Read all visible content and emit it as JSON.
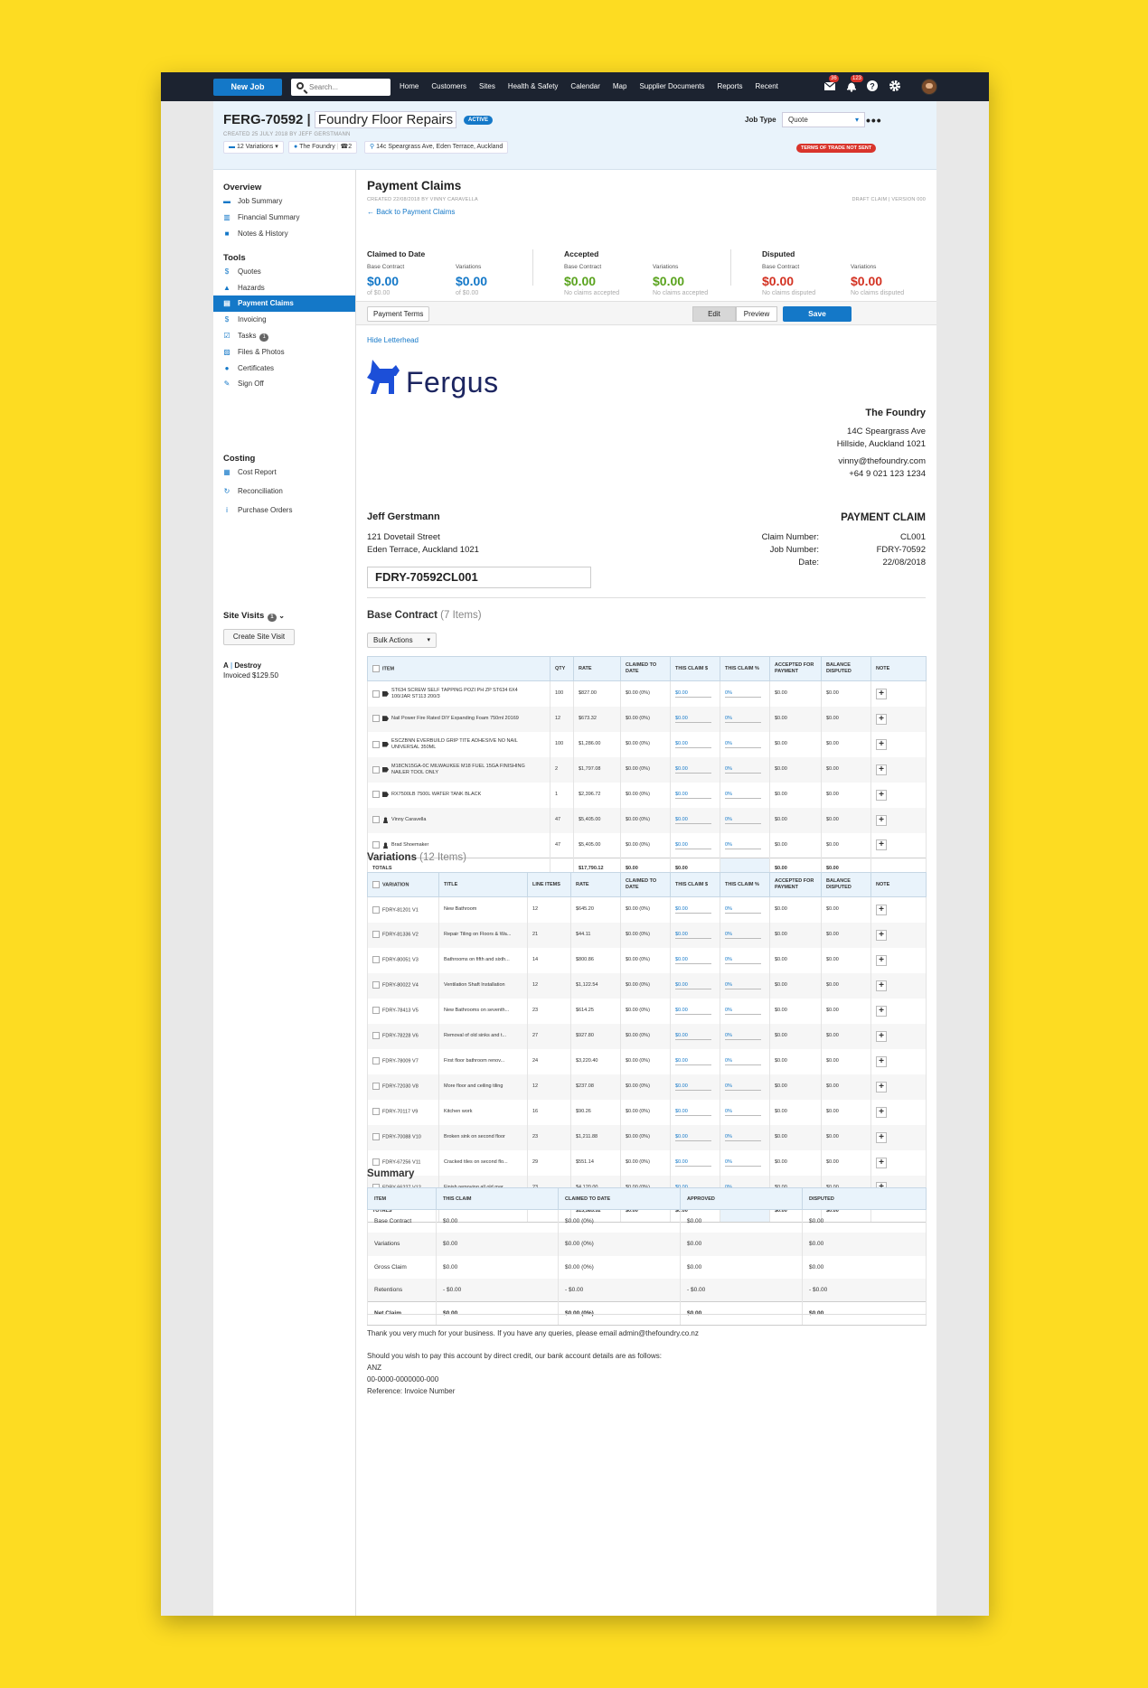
{
  "nav": {
    "new_job": "New Job",
    "search_placeholder": "Search...",
    "links": [
      "Home",
      "Customers",
      "Sites",
      "Health & Safety",
      "Calendar",
      "Map",
      "Supplier Documents",
      "Reports",
      "Recent"
    ],
    "mail_count": "36",
    "notify_count": "123"
  },
  "job": {
    "id": "FERG-70592",
    "name": "Foundry Floor Repairs",
    "status": "ACTIVE",
    "created": "CREATED 25 JULY 2018 BY JEFF GERSTMANN",
    "variations": "12 Variations",
    "customer": "The Foundry",
    "contacts": "2",
    "address": "14c Speargrass Ave, Eden Terrace, Auckland",
    "job_type_label": "Job Type",
    "job_type": "Quote",
    "terms_badge": "TERMS OF TRADE NOT SENT"
  },
  "sidebar": {
    "overview": "Overview",
    "overview_items": [
      "Job Summary",
      "Financial Summary",
      "Notes & History"
    ],
    "tools": "Tools",
    "tools_items": [
      "Quotes",
      "Hazards",
      "Payment Claims",
      "Invoicing",
      "Tasks",
      "Files & Photos",
      "Certificates",
      "Sign Off"
    ],
    "tasks_count": "1",
    "costing": "Costing",
    "costing_items": [
      "Cost Report",
      "Reconciliation",
      "Purchase Orders"
    ],
    "site_visits": "Site Visits",
    "site_visits_count": "1",
    "create_site_visit": "Create Site Visit",
    "visit_code": "A",
    "visit_name": "Destroy",
    "visit_invoiced": "Invoiced $129.50"
  },
  "claim": {
    "title": "Payment Claims",
    "created": "CREATED 22/08/2018 BY VINNY CARAVELLA",
    "draft": "DRAFT CLAIM | VERSION 000",
    "back": "Back to Payment Claims"
  },
  "stats": [
    {
      "title": "Claimed to Date",
      "color": "#1478c8",
      "base_label": "Base Contract",
      "base_value": "$0.00",
      "base_sub": "of $0.00",
      "var_label": "Variations",
      "var_value": "$0.00",
      "var_sub": "of $0.00"
    },
    {
      "title": "Accepted",
      "color": "#5aa31e",
      "base_label": "Base Contract",
      "base_value": "$0.00",
      "base_sub": "No claims accepted",
      "var_label": "Variations",
      "var_value": "$0.00",
      "var_sub": "No claims accepted"
    },
    {
      "title": "Disputed",
      "color": "#d33222",
      "base_label": "Base Contract",
      "base_value": "$0.00",
      "base_sub": "No claims disputed",
      "var_label": "Variations",
      "var_value": "$0.00",
      "var_sub": "No claims disputed"
    }
  ],
  "toolbar": {
    "payment_terms": "Payment Terms",
    "edit": "Edit",
    "preview": "Preview",
    "save": "Save"
  },
  "letterhead": {
    "hide": "Hide Letterhead",
    "logo": "Fergus",
    "company": "The Foundry",
    "addr1": "14C Speargrass Ave",
    "addr2": "Hillside, Auckland 1021",
    "email": "vinny@thefoundry.com",
    "phone": "+64 9 021 123 1234",
    "client": "Jeff Gerstmann",
    "client_addr1": "121 Dovetail Street",
    "client_addr2": "Eden Terrace, Auckland 1021",
    "doc_title": "PAYMENT CLAIM",
    "claim_number_label": "Claim Number:",
    "claim_number": "CL001",
    "job_number_label": "Job Number:",
    "job_number": "FDRY-70592",
    "date_label": "Date:",
    "date": "22/08/2018",
    "reference": "FDRY-70592CL001"
  },
  "base": {
    "title": "Base Contract",
    "count": "(7 Items)",
    "bulk": "Bulk Actions",
    "headers": [
      "ITEM",
      "QTY",
      "RATE",
      "CLAIMED TO DATE",
      "THIS CLAIM $",
      "THIS CLAIM %",
      "ACCEPTED FOR PAYMENT",
      "BALANCE DISPUTED",
      "NOTE"
    ],
    "rows": [
      {
        "type": "tag",
        "item": "ST634 SCREW SELF TAPPING POZI PH ZP ST634 6X4 100/JAR ST113 200/3",
        "qty": "100",
        "rate": "$827.00",
        "claimed": "$0.00 (0%)",
        "claim": "$0.00",
        "pct": "0%",
        "accepted": "$0.00",
        "disputed": "$0.00"
      },
      {
        "type": "tag",
        "item": "Nail Power Fire Rated DIY Expanding Foam 750ml 20169",
        "qty": "12",
        "rate": "$673.32",
        "claimed": "$0.00 (0%)",
        "claim": "$0.00",
        "pct": "0%",
        "accepted": "$0.00",
        "disputed": "$0.00"
      },
      {
        "type": "tag",
        "item": "ESCZBNN EVERBUILD GRIP TITE ADHESIVE NO NAIL UNIVERSAL 350ML",
        "qty": "100",
        "rate": "$1,286.00",
        "claimed": "$0.00 (0%)",
        "claim": "$0.00",
        "pct": "0%",
        "accepted": "$0.00",
        "disputed": "$0.00"
      },
      {
        "type": "tag",
        "item": "M18CN15GA-0C MILWAUKEE M18 FUEL 15GA FINISHING NAILER TOOL ONLY",
        "qty": "2",
        "rate": "$1,797.08",
        "claimed": "$0.00 (0%)",
        "claim": "$0.00",
        "pct": "0%",
        "accepted": "$0.00",
        "disputed": "$0.00"
      },
      {
        "type": "tag",
        "item": "RX7500LB 7500L WATER TANK BLACK",
        "qty": "1",
        "rate": "$2,396.72",
        "claimed": "$0.00 (0%)",
        "claim": "$0.00",
        "pct": "0%",
        "accepted": "$0.00",
        "disputed": "$0.00"
      },
      {
        "type": "user",
        "item": "Vinny Caravella",
        "qty": "47",
        "rate": "$5,405.00",
        "claimed": "$0.00 (0%)",
        "claim": "$0.00",
        "pct": "0%",
        "accepted": "$0.00",
        "disputed": "$0.00"
      },
      {
        "type": "user",
        "item": "Brad Shoemaker",
        "qty": "47",
        "rate": "$5,405.00",
        "claimed": "$0.00 (0%)",
        "claim": "$0.00",
        "pct": "0%",
        "accepted": "$0.00",
        "disputed": "$0.00"
      }
    ],
    "totals": {
      "label": "TOTALS",
      "rate": "$17,790.12",
      "claimed": "$0.00",
      "claim": "$0.00",
      "accepted": "$0.00",
      "disputed": "$0.00"
    }
  },
  "variations": {
    "title": "Variations",
    "count": "(12 Items)",
    "headers": [
      "VARIATION",
      "TITLE",
      "LINE ITEMS",
      "RATE",
      "CLAIMED TO DATE",
      "THIS CLAIM $",
      "THIS CLAIM %",
      "ACCEPTED FOR PAYMENT",
      "BALANCE DISPUTED",
      "NOTE"
    ],
    "rows": [
      {
        "id": "FDRY-81201 V1",
        "title": "New Bathroom",
        "lines": "12",
        "rate": "$645.20",
        "claimed": "$0.00 (0%)",
        "claim": "$0.00",
        "pct": "0%",
        "accepted": "$0.00",
        "disputed": "$0.00"
      },
      {
        "id": "FDRY-81336 V2",
        "title": "Repair Tiling on Floors & Wa...",
        "lines": "21",
        "rate": "$44.11",
        "claimed": "$0.00 (0%)",
        "claim": "$0.00",
        "pct": "0%",
        "accepted": "$0.00",
        "disputed": "$0.00"
      },
      {
        "id": "FDRY-80051 V3",
        "title": "Bathrooms on fifth and sixth...",
        "lines": "14",
        "rate": "$800.86",
        "claimed": "$0.00 (0%)",
        "claim": "$0.00",
        "pct": "0%",
        "accepted": "$0.00",
        "disputed": "$0.00"
      },
      {
        "id": "FDRY-80022 V4",
        "title": "Ventilation Shaft Installation",
        "lines": "12",
        "rate": "$1,122.54",
        "claimed": "$0.00 (0%)",
        "claim": "$0.00",
        "pct": "0%",
        "accepted": "$0.00",
        "disputed": "$0.00"
      },
      {
        "id": "FDRY-78413 V5",
        "title": "New Bathrooms on seventh...",
        "lines": "23",
        "rate": "$614.25",
        "claimed": "$0.00 (0%)",
        "claim": "$0.00",
        "pct": "0%",
        "accepted": "$0.00",
        "disputed": "$0.00"
      },
      {
        "id": "FDRY-78228 V6",
        "title": "Removal of old sinks and t...",
        "lines": "27",
        "rate": "$927.80",
        "claimed": "$0.00 (0%)",
        "claim": "$0.00",
        "pct": "0%",
        "accepted": "$0.00",
        "disputed": "$0.00"
      },
      {
        "id": "FDRY-78009 V7",
        "title": "First floor bathroom renov...",
        "lines": "24",
        "rate": "$3,220.40",
        "claimed": "$0.00 (0%)",
        "claim": "$0.00",
        "pct": "0%",
        "accepted": "$0.00",
        "disputed": "$0.00"
      },
      {
        "id": "FDRY-72030 V8",
        "title": "More floor and ceiling tiling",
        "lines": "12",
        "rate": "$237.08",
        "claimed": "$0.00 (0%)",
        "claim": "$0.00",
        "pct": "0%",
        "accepted": "$0.00",
        "disputed": "$0.00"
      },
      {
        "id": "FDRY-70117 V9",
        "title": "Kitchen work",
        "lines": "16",
        "rate": "$90.26",
        "claimed": "$0.00 (0%)",
        "claim": "$0.00",
        "pct": "0%",
        "accepted": "$0.00",
        "disputed": "$0.00"
      },
      {
        "id": "FDRY-70088 V10",
        "title": "Broken sink on second floor",
        "lines": "23",
        "rate": "$1,211.88",
        "claimed": "$0.00 (0%)",
        "claim": "$0.00",
        "pct": "0%",
        "accepted": "$0.00",
        "disputed": "$0.00"
      },
      {
        "id": "FDRY-67256 V11",
        "title": "Cracked tiles on second flo...",
        "lines": "29",
        "rate": "$551.14",
        "claimed": "$0.00 (0%)",
        "claim": "$0.00",
        "pct": "0%",
        "accepted": "$0.00",
        "disputed": "$0.00"
      },
      {
        "id": "FDRY-66227 V12",
        "title": "Finish removing all old mar...",
        "lines": "23",
        "rate": "$4,120.00",
        "claimed": "$0.00 (0%)",
        "claim": "$0.00",
        "pct": "0%",
        "accepted": "$0.00",
        "disputed": "$0.00"
      }
    ],
    "totals": {
      "label": "TOTALS",
      "rate": "$13,585.52",
      "claimed": "$0.00",
      "claim": "$0.00",
      "accepted": "$0.00",
      "disputed": "$0.00"
    }
  },
  "summary": {
    "title": "Summary",
    "headers": [
      "ITEM",
      "THIS CLAIM",
      "CLAIMED TO DATE",
      "APPROVED",
      "DISPUTED"
    ],
    "rows": [
      [
        "Base Contract",
        "$0.00",
        "$0.00 (0%)",
        "$0.00",
        "$0.00"
      ],
      [
        "Variations",
        "$0.00",
        "$0.00 (0%)",
        "$0.00",
        "$0.00"
      ],
      [
        "Gross Claim",
        "$0.00",
        "$0.00 (0%)",
        "$0.00",
        "$0.00"
      ],
      [
        "Retentions",
        "- $0.00",
        "- $0.00",
        "- $0.00",
        "- $0.00"
      ],
      [
        "Net Claim",
        "$0.00",
        "$0.00 (0%)",
        "$0.00",
        "$0.00"
      ]
    ]
  },
  "footer": {
    "thanks": "Thank you very much for your business. If you have any queries, please email admin@thefoundry.co.nz",
    "bank_intro": "Should you wish to pay this account by direct credit, our bank account details are as follows:",
    "bank": "ANZ",
    "account": "00-0000-0000000-000",
    "reference": "Reference: Invoice Number"
  }
}
